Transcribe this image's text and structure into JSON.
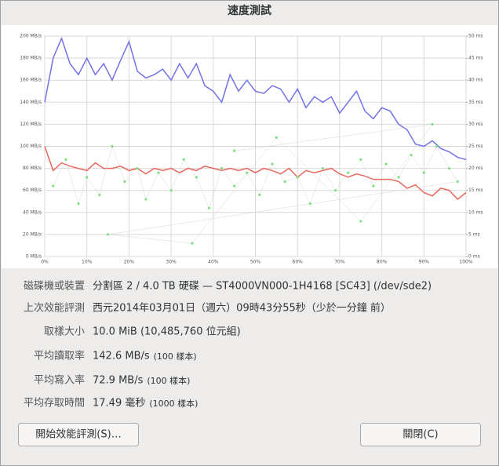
{
  "dialog_title": "速度測試",
  "chart_data": {
    "type": "line",
    "x": [
      0,
      2,
      4,
      6,
      8,
      10,
      12,
      14,
      16,
      18,
      20,
      22,
      24,
      26,
      28,
      30,
      32,
      34,
      36,
      38,
      40,
      42,
      44,
      46,
      48,
      50,
      52,
      54,
      56,
      58,
      60,
      62,
      64,
      66,
      68,
      70,
      72,
      74,
      76,
      78,
      80,
      82,
      84,
      86,
      88,
      90,
      92,
      94,
      96,
      98,
      100
    ],
    "xlim": [
      0,
      100
    ],
    "xticks": [
      {
        "value": 0,
        "label": "0%"
      },
      {
        "value": 10,
        "label": "10%"
      },
      {
        "value": 20,
        "label": "20%"
      },
      {
        "value": 30,
        "label": "30%"
      },
      {
        "value": 40,
        "label": "40%"
      },
      {
        "value": 50,
        "label": "50%"
      },
      {
        "value": 60,
        "label": "60%"
      },
      {
        "value": 70,
        "label": "70%"
      },
      {
        "value": 80,
        "label": "80%"
      },
      {
        "value": 90,
        "label": "90%"
      },
      {
        "value": 100,
        "label": "100%"
      }
    ],
    "ylim": [
      0,
      200
    ],
    "yticks": [
      {
        "value": 0,
        "label": "0 MB/s"
      },
      {
        "value": 20,
        "label": "20 MB/s"
      },
      {
        "value": 40,
        "label": "40 MB/s"
      },
      {
        "value": 60,
        "label": "60 MB/s"
      },
      {
        "value": 80,
        "label": "80 MB/s"
      },
      {
        "value": 100,
        "label": "100 MB/s"
      },
      {
        "value": 120,
        "label": "120 MB/s"
      },
      {
        "value": 140,
        "label": "140 MB/s"
      },
      {
        "value": 160,
        "label": "160 MB/s"
      },
      {
        "value": 180,
        "label": "180 MB/s"
      },
      {
        "value": 200,
        "label": "200 MB/s"
      }
    ],
    "y2lim": [
      0,
      50
    ],
    "y2ticks": [
      {
        "value": 0,
        "label": "0 ms"
      },
      {
        "value": 5,
        "label": "5 ms"
      },
      {
        "value": 10,
        "label": "10 ms"
      },
      {
        "value": 15,
        "label": "15 ms"
      },
      {
        "value": 20,
        "label": "20 ms"
      },
      {
        "value": 25,
        "label": "25 ms"
      },
      {
        "value": 30,
        "label": "30 ms"
      },
      {
        "value": 35,
        "label": "35 ms"
      },
      {
        "value": 40,
        "label": "40 ms"
      },
      {
        "value": 45,
        "label": "45 ms"
      },
      {
        "value": 50,
        "label": "50 ms"
      }
    ],
    "grid": true,
    "series": [
      {
        "color": "#7272e8",
        "values": [
          140,
          180,
          198,
          175,
          165,
          180,
          165,
          175,
          160,
          178,
          195,
          168,
          162,
          165,
          170,
          160,
          175,
          162,
          175,
          155,
          150,
          140,
          165,
          150,
          160,
          150,
          148,
          155,
          152,
          140,
          152,
          135,
          145,
          140,
          145,
          130,
          140,
          150,
          132,
          125,
          135,
          132,
          120,
          115,
          102,
          100,
          105,
          98,
          95,
          90,
          88
        ]
      },
      {
        "color": "#e8685e",
        "values": [
          100,
          78,
          85,
          82,
          80,
          78,
          85,
          80,
          80,
          82,
          78,
          80,
          75,
          80,
          78,
          80,
          76,
          80,
          78,
          82,
          80,
          78,
          80,
          78,
          80,
          76,
          80,
          78,
          75,
          80,
          72,
          78,
          76,
          78,
          80,
          75,
          72,
          75,
          73,
          70,
          70,
          70,
          68,
          62,
          65,
          58,
          55,
          62,
          60,
          52,
          58
        ]
      },
      {
        "type": "scatter",
        "axis": "y2",
        "color": "#7fe07f",
        "x": [
          2,
          5,
          8,
          10,
          13,
          16,
          19,
          22,
          24,
          27,
          30,
          33,
          36,
          39,
          42,
          45,
          48,
          51,
          54,
          57,
          60,
          63,
          66,
          69,
          72,
          75,
          78,
          81,
          84,
          87,
          90,
          93,
          96,
          98,
          15,
          35,
          55,
          75,
          92,
          45
        ],
        "values": [
          16,
          22,
          12,
          18,
          14,
          25,
          17,
          20,
          13,
          19,
          15,
          22,
          18,
          11,
          20,
          16,
          19,
          14,
          21,
          17,
          18,
          12,
          20,
          15,
          19,
          22,
          16,
          21,
          18,
          23,
          19,
          25,
          20,
          17,
          5,
          3,
          27,
          8,
          30,
          24
        ]
      }
    ]
  },
  "info": [
    {
      "label": "磁碟機或裝置",
      "value": "分割區 2 / 4.0 TB 硬碟 — ST4000VN000-1H4168 [SC43] (/dev/sde2)"
    },
    {
      "label": "上次效能評測",
      "value": "西元2014年03月01日（週六）09時43分55秒（少於一分鐘 前）"
    },
    {
      "label": "取樣大小",
      "value": "10.0 MiB (10,485,760 位元組)"
    },
    {
      "label": "平均讀取率",
      "value": "142.6 MB/s",
      "note": "(100 樣本)"
    },
    {
      "label": "平均寫入率",
      "value": "72.9 MB/s",
      "note": "(100 樣本)"
    },
    {
      "label": "平均存取時間",
      "value": "17.49 毫秒",
      "note": "(1000 樣本)"
    }
  ],
  "buttons": {
    "start": "開始效能評測(S)…",
    "close": "關閉(C)"
  }
}
